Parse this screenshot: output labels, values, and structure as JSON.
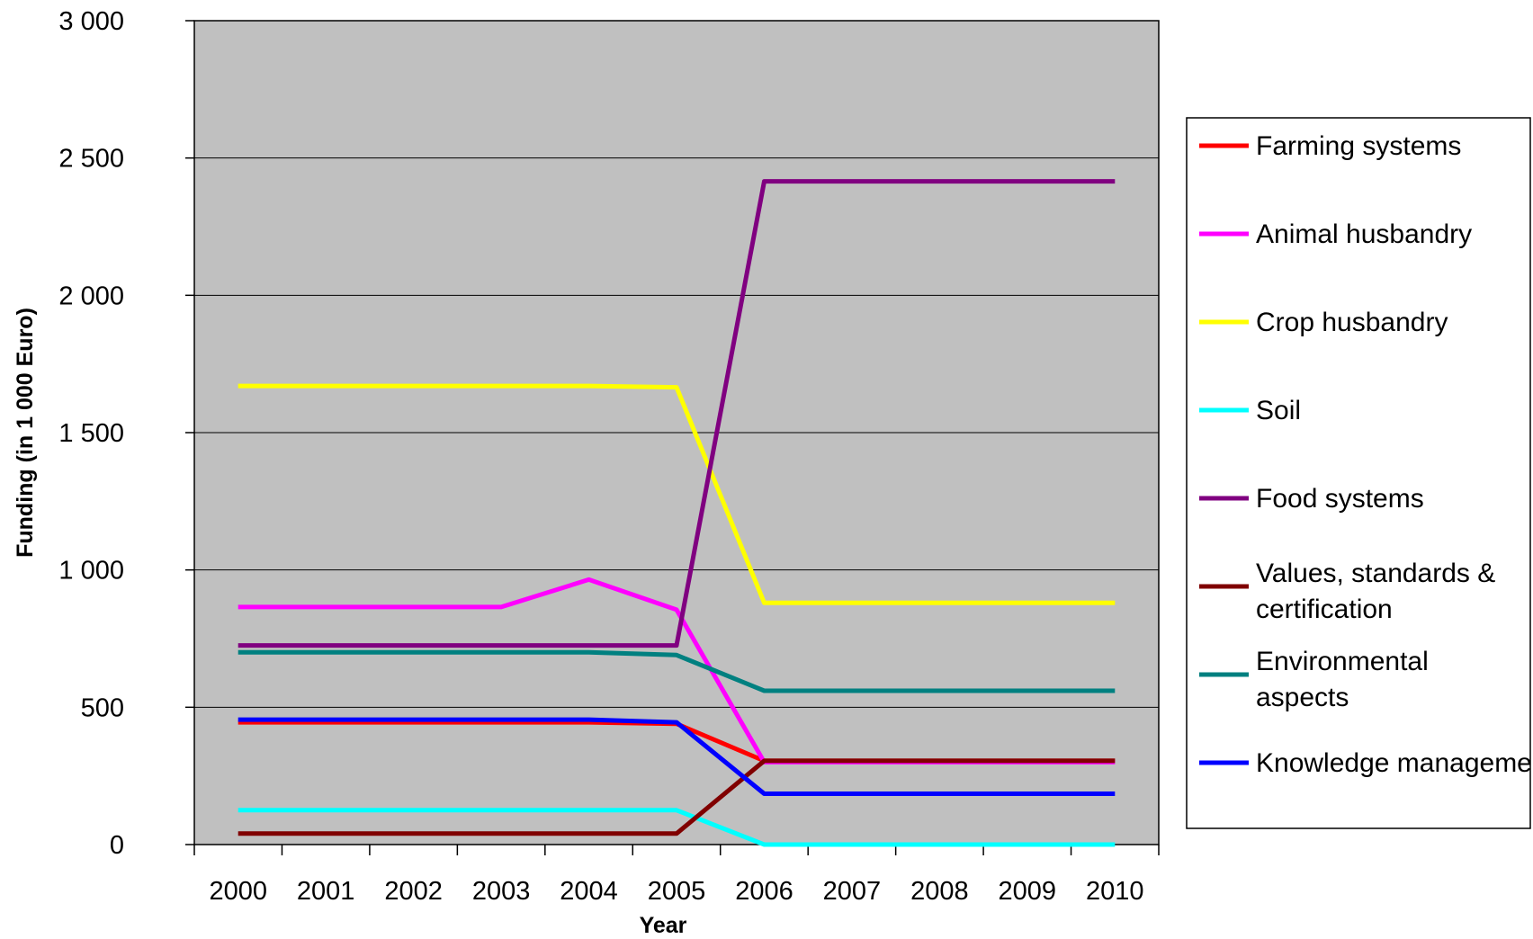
{
  "chart_data": {
    "type": "line",
    "title": "",
    "xlabel": "Year",
    "ylabel": "Funding (in 1 000 Euro)",
    "x": [
      "2000",
      "2001",
      "2002",
      "2003",
      "2004",
      "2005",
      "2006",
      "2007",
      "2008",
      "2009",
      "2010"
    ],
    "ylim": [
      0,
      3000
    ],
    "yticks": [
      0,
      500,
      1000,
      1500,
      2000,
      2500,
      3000
    ],
    "ytick_labels": [
      "0",
      "500",
      "1 000",
      "1 500",
      "2 000",
      "2 500",
      "3 000"
    ],
    "grid": "horizontal",
    "plot_background": "#c0c0c0",
    "legend_position": "right",
    "series": [
      {
        "name": "Farming systems",
        "color": "#ff0000",
        "values": [
          445,
          445,
          445,
          445,
          445,
          440,
          305,
          305,
          305,
          305,
          305
        ]
      },
      {
        "name": "Animal husbandry",
        "color": "#ff00ff",
        "values": [
          865,
          865,
          865,
          865,
          965,
          855,
          300,
          300,
          300,
          300,
          300
        ]
      },
      {
        "name": "Crop husbandry",
        "color": "#ffff00",
        "values": [
          1670,
          1670,
          1670,
          1670,
          1670,
          1665,
          880,
          880,
          880,
          880,
          880
        ]
      },
      {
        "name": "Soil",
        "color": "#00ffff",
        "values": [
          125,
          125,
          125,
          125,
          125,
          125,
          0,
          0,
          0,
          0,
          0
        ]
      },
      {
        "name": "Food systems",
        "color": "#800080",
        "values": [
          725,
          725,
          725,
          725,
          725,
          725,
          2415,
          2415,
          2415,
          2415,
          2415
        ]
      },
      {
        "name": "Values, standards & certification",
        "color": "#800000",
        "values": [
          40,
          40,
          40,
          40,
          40,
          40,
          305,
          305,
          305,
          305,
          305
        ]
      },
      {
        "name": "Environmental aspects",
        "color": "#008080",
        "values": [
          700,
          700,
          700,
          700,
          700,
          690,
          560,
          560,
          560,
          560,
          560
        ]
      },
      {
        "name": "Knowledge management",
        "color": "#0000ff",
        "values": [
          455,
          455,
          455,
          455,
          455,
          445,
          185,
          185,
          185,
          185,
          185
        ]
      }
    ]
  }
}
